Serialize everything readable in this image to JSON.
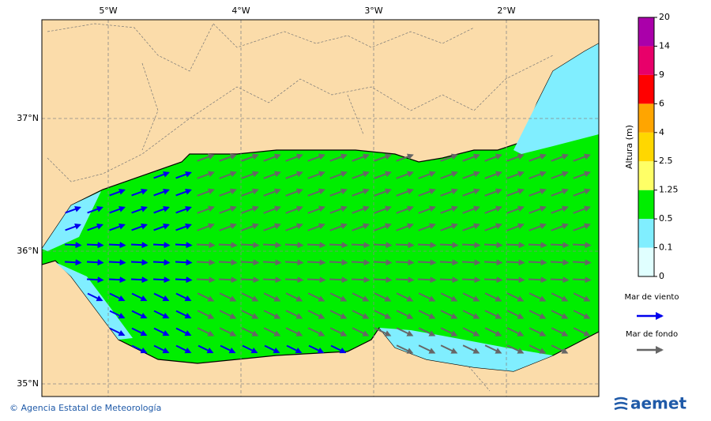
{
  "map": {
    "lon_labels": [
      "5°W",
      "4°W",
      "3°W",
      "2°W"
    ],
    "lat_labels": [
      "37°N",
      "36°N",
      "35°N"
    ],
    "colorbar": {
      "title": "Altura (m)",
      "ticks": [
        "0",
        "0.1",
        "0.5",
        "1.25",
        "2.5",
        "4",
        "6",
        "9",
        "14",
        "20"
      ],
      "colors": [
        "#e0ffff",
        "#80eeff",
        "#00ee00",
        "#ffff66",
        "#ffd700",
        "#ffa500",
        "#ff0000",
        "#e8006a",
        "#aa00aa"
      ]
    },
    "legend": [
      "Mar de viento",
      "Mar de fondo"
    ],
    "legend_colors": [
      "#0000ee",
      "#666666"
    ]
  },
  "footer": {
    "credit": "© Agencia Estatal de Meteorología",
    "logo": "aemet"
  }
}
